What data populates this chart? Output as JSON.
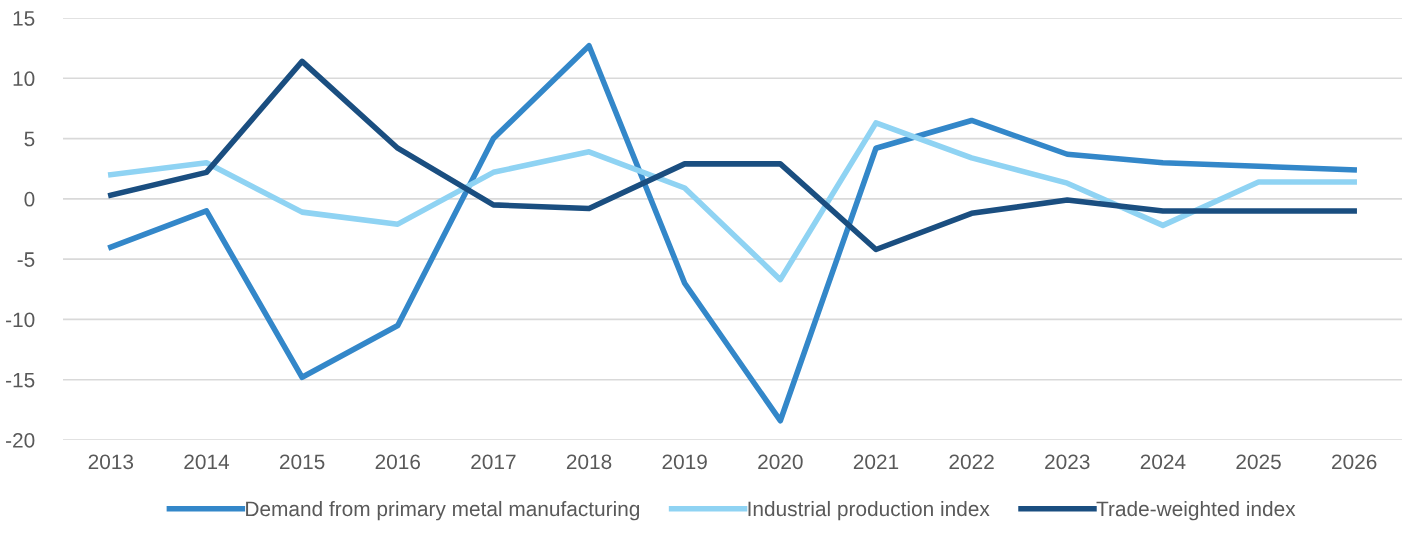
{
  "chart_data": {
    "type": "line",
    "categories": [
      "2013",
      "2014",
      "2015",
      "2016",
      "2017",
      "2018",
      "2019",
      "2020",
      "2021",
      "2022",
      "2023",
      "2024",
      "2025",
      "2026"
    ],
    "series": [
      {
        "name": "Demand from primary metal manufacturing",
        "color": "#3387c9",
        "values": [
          -4.0,
          -1.0,
          -14.8,
          -10.5,
          5.0,
          12.7,
          -7.0,
          -18.4,
          4.2,
          6.5,
          3.7,
          3.0,
          2.7,
          2.4
        ]
      },
      {
        "name": "Industrial production index",
        "color": "#8fd3f3",
        "values": [
          2.0,
          3.0,
          -1.1,
          -2.1,
          2.2,
          3.9,
          0.9,
          -6.7,
          6.3,
          3.4,
          1.3,
          -2.2,
          1.4,
          1.4
        ]
      },
      {
        "name": "Trade-weighted index",
        "color": "#1a4e80",
        "values": [
          0.3,
          2.2,
          11.4,
          4.2,
          -0.5,
          -0.8,
          2.9,
          2.9,
          -4.2,
          -1.2,
          -0.1,
          -1.0,
          -1.0,
          -1.0
        ]
      }
    ],
    "ylim": [
      -20,
      15
    ],
    "yticks": [
      -20,
      -15,
      -10,
      -5,
      0,
      5,
      10,
      15
    ],
    "grid": "y",
    "legend": "bottom",
    "marker": "none",
    "line_style": "solid"
  }
}
